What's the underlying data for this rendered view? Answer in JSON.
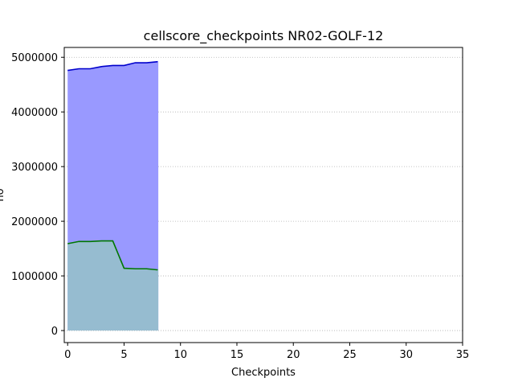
{
  "chart_data": {
    "type": "area",
    "title": "cellscore_checkpoints NR02-GOLF-12",
    "xlabel": "Checkpoints",
    "ylabel": "no",
    "xlim": [
      -0.3,
      35
    ],
    "ylim": [
      -220000,
      5180000
    ],
    "xticks": [
      0,
      5,
      10,
      15,
      20,
      25,
      30,
      35
    ],
    "yticks": [
      0,
      1000000,
      2000000,
      3000000,
      4000000,
      5000000
    ],
    "grid": "y-dotted",
    "x": [
      0,
      1,
      2,
      3,
      4,
      5,
      6,
      7,
      8
    ],
    "series": [
      {
        "values": [
          4760000,
          4790000,
          4790000,
          4830000,
          4850000,
          4850000,
          4900000,
          4900000,
          4920000
        ],
        "line_color": "#0000cc",
        "fill_color": "#9999ff"
      },
      {
        "values": [
          1590000,
          1630000,
          1630000,
          1640000,
          1640000,
          1140000,
          1130000,
          1130000,
          1110000
        ],
        "line_color": "#007700",
        "fill_color": "#96bcd0"
      }
    ]
  }
}
